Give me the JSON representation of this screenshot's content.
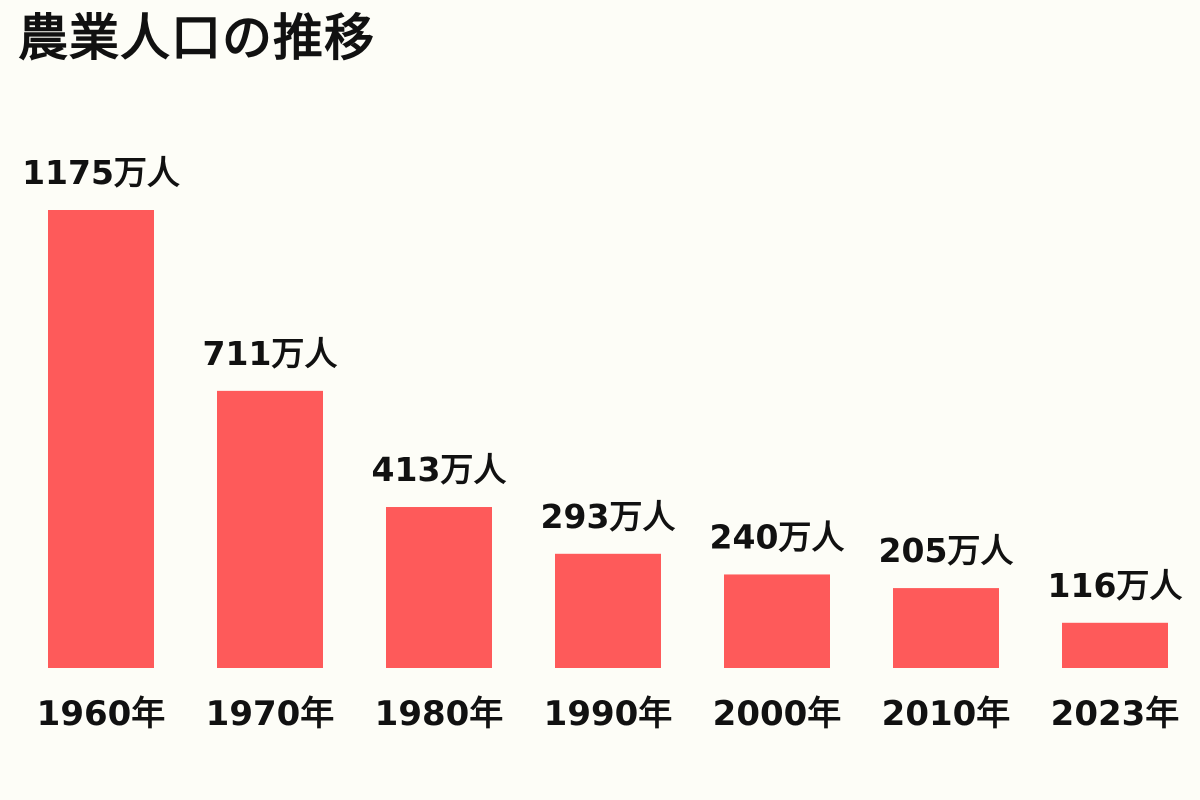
{
  "colors": {
    "background": "#fdfdf7",
    "bar": "#fe5a5a",
    "text": "#111111"
  },
  "chart_data": {
    "type": "bar",
    "title": "農業人口の推移",
    "xlabel": "",
    "ylabel": "",
    "grid": false,
    "legend": "none",
    "categories": [
      "1960年",
      "1970年",
      "1980年",
      "1990年",
      "2000年",
      "2010年",
      "2023年"
    ],
    "values": [
      1175,
      711,
      413,
      293,
      240,
      205,
      116
    ],
    "value_labels": [
      "1175万人",
      "711万人",
      "413万人",
      "293万人",
      "240万人",
      "205万人",
      "116万人"
    ],
    "unit": "万人",
    "ylim": [
      0,
      1175
    ]
  }
}
